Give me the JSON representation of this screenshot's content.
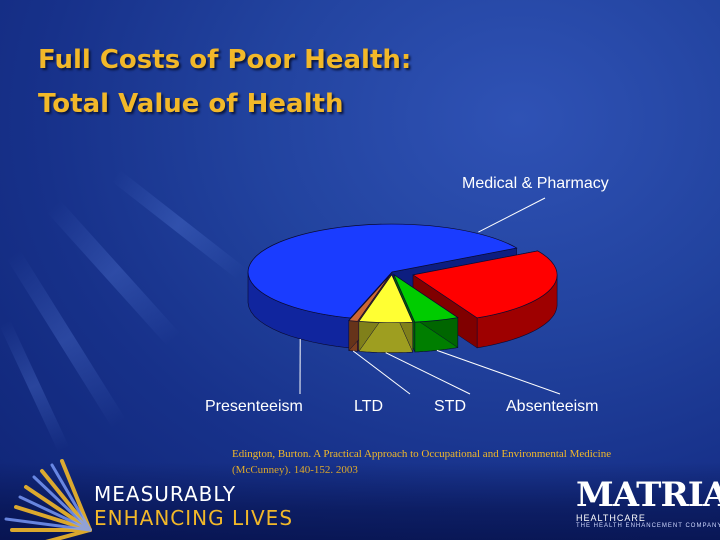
{
  "slide": {
    "title_line1": "Full Costs of Poor Health:",
    "title_line2": "Total Value of Health",
    "citation": "Edington, Burton. A Practical Approach to Occupational and Environmental Medicine (McCunney). 140-152. 2003",
    "tagline_line1": "MEASURABLY",
    "tagline_line2": "ENHANCING LIVES",
    "logo_name": "MATRIA",
    "logo_sub": "HEALTHCARE",
    "logo_tagline": "THE HEALTH ENHANCEMENT COMPANY"
  },
  "colors": {
    "title": "#f2b829",
    "background": "#1a3a9a",
    "medical_pharmacy": "#ff0000",
    "absenteeism": "#00cc00",
    "std": "#ffff33",
    "ltd": "#cc6633",
    "presenteeism": "#1a3cff"
  },
  "chart_data": {
    "type": "pie",
    "style": "3d-exploded",
    "title": "",
    "slices": [
      {
        "label": "Medical & Pharmacy",
        "value": 26,
        "color": "#ff0000"
      },
      {
        "label": "Absenteeism",
        "value": 5,
        "color": "#00cc00"
      },
      {
        "label": "STD",
        "value": 6,
        "color": "#ffff33"
      },
      {
        "label": "LTD",
        "value": 1,
        "color": "#cc6633"
      },
      {
        "label": "Presenteeism",
        "value": 62,
        "color": "#1a3cff"
      }
    ],
    "legend": "none"
  }
}
